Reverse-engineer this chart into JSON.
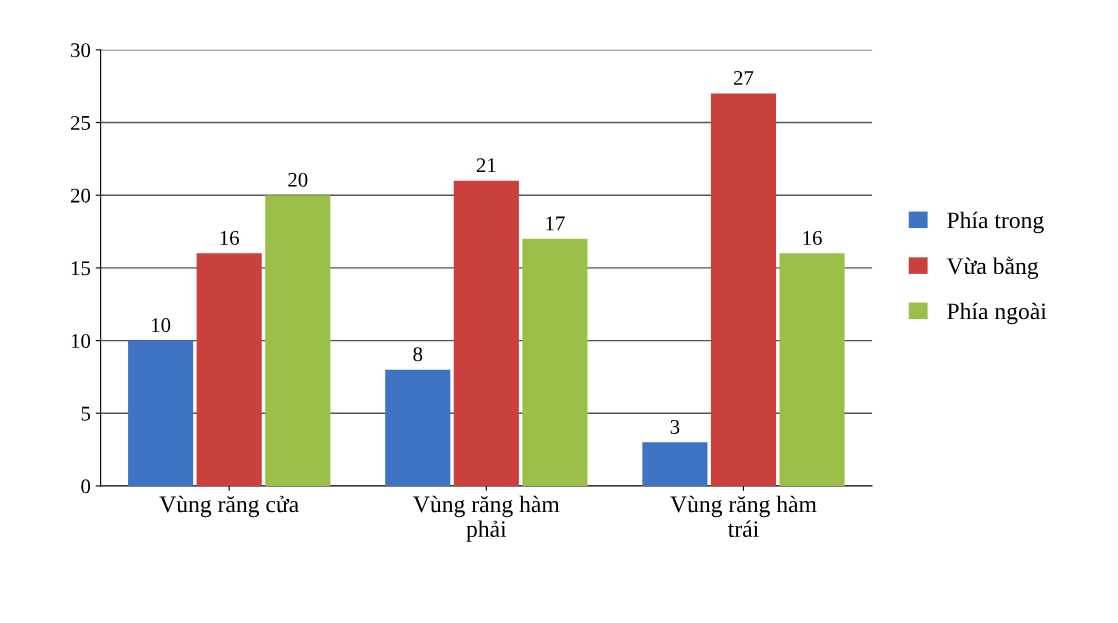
{
  "chart_data": {
    "type": "bar",
    "categories": [
      "Vùng răng cửa",
      "Vùng răng hàm\nphải",
      "Vùng răng hàm\ntrái"
    ],
    "series": [
      {
        "name": "Phía trong",
        "color": "#3f74c4",
        "values": [
          10,
          8,
          3
        ]
      },
      {
        "name": "Vừa bằng",
        "color": "#c9403c",
        "values": [
          16,
          21,
          27
        ]
      },
      {
        "name": "Phía ngoài",
        "color": "#9bc04a",
        "values": [
          20,
          17,
          16
        ]
      }
    ],
    "ylim": [
      0,
      30
    ],
    "yticks": [
      0,
      5,
      10,
      15,
      20,
      25,
      30
    ],
    "grid": "y",
    "legend": "right",
    "data_labels": true
  }
}
